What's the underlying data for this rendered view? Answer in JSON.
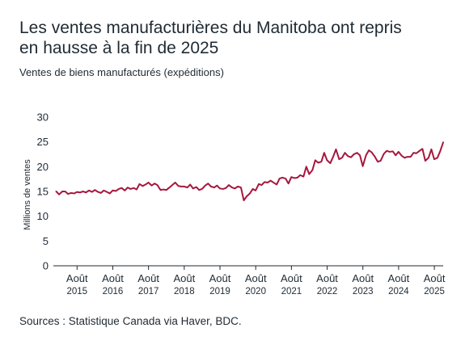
{
  "chart_data": {
    "type": "line",
    "title_line1": "Les ventes manufacturières du Manitoba ont repris",
    "title_line2": "en hausse à la fin de 2025",
    "subtitle": "Ventes de biens manufacturés (expéditions)",
    "ylabel": "Millions de ventes",
    "xlabel": "",
    "ylim": [
      0,
      30
    ],
    "yticks": [
      0,
      5,
      10,
      15,
      20,
      25,
      30
    ],
    "grid": false,
    "line_color": "#a6173d",
    "x_ticks": [
      {
        "month": "Août",
        "year": "2015",
        "x": 2015.583
      },
      {
        "month": "Août",
        "year": "2016",
        "x": 2016.583
      },
      {
        "month": "Août",
        "year": "2017",
        "x": 2017.583
      },
      {
        "month": "Août",
        "year": "2018",
        "x": 2018.583
      },
      {
        "month": "Août",
        "year": "2019",
        "x": 2019.583
      },
      {
        "month": "Août",
        "year": "2020",
        "x": 2020.583
      },
      {
        "month": "Août",
        "year": "2021",
        "x": 2021.583
      },
      {
        "month": "Août",
        "year": "2022",
        "x": 2022.583
      },
      {
        "month": "Août",
        "year": "2023",
        "x": 2023.583
      },
      {
        "month": "Août",
        "year": "2024",
        "x": 2024.583
      },
      {
        "month": "Août",
        "year": "2025",
        "x": 2025.583
      }
    ],
    "xlim": [
      2014.92,
      2025.83
    ],
    "series": [
      {
        "points": [
          [
            2015.0,
            15.0
          ],
          [
            2015.08,
            14.4
          ],
          [
            2015.17,
            15.0
          ],
          [
            2015.25,
            15.0
          ],
          [
            2015.33,
            14.5
          ],
          [
            2015.42,
            14.7
          ],
          [
            2015.5,
            14.6
          ],
          [
            2015.58,
            14.9
          ],
          [
            2015.67,
            14.8
          ],
          [
            2015.75,
            15.0
          ],
          [
            2015.83,
            14.8
          ],
          [
            2015.92,
            15.2
          ],
          [
            2016.0,
            14.9
          ],
          [
            2016.08,
            15.3
          ],
          [
            2016.17,
            14.9
          ],
          [
            2016.25,
            14.7
          ],
          [
            2016.33,
            15.2
          ],
          [
            2016.42,
            14.9
          ],
          [
            2016.5,
            14.6
          ],
          [
            2016.58,
            15.2
          ],
          [
            2016.67,
            15.1
          ],
          [
            2016.75,
            15.5
          ],
          [
            2016.83,
            15.7
          ],
          [
            2016.92,
            15.2
          ],
          [
            2017.0,
            15.8
          ],
          [
            2017.08,
            15.5
          ],
          [
            2017.17,
            15.7
          ],
          [
            2017.25,
            15.4
          ],
          [
            2017.33,
            16.5
          ],
          [
            2017.42,
            16.1
          ],
          [
            2017.5,
            16.4
          ],
          [
            2017.58,
            16.8
          ],
          [
            2017.67,
            16.2
          ],
          [
            2017.75,
            16.6
          ],
          [
            2017.83,
            16.3
          ],
          [
            2017.92,
            15.3
          ],
          [
            2018.0,
            15.4
          ],
          [
            2018.08,
            15.3
          ],
          [
            2018.17,
            15.8
          ],
          [
            2018.25,
            16.3
          ],
          [
            2018.33,
            16.8
          ],
          [
            2018.42,
            16.1
          ],
          [
            2018.5,
            16.0
          ],
          [
            2018.58,
            16.0
          ],
          [
            2018.67,
            15.8
          ],
          [
            2018.75,
            16.4
          ],
          [
            2018.83,
            15.6
          ],
          [
            2018.92,
            15.9
          ],
          [
            2019.0,
            15.3
          ],
          [
            2019.08,
            15.5
          ],
          [
            2019.17,
            16.2
          ],
          [
            2019.25,
            16.6
          ],
          [
            2019.33,
            16.0
          ],
          [
            2019.42,
            15.8
          ],
          [
            2019.5,
            16.2
          ],
          [
            2019.58,
            15.6
          ],
          [
            2019.67,
            15.5
          ],
          [
            2019.75,
            15.7
          ],
          [
            2019.83,
            16.3
          ],
          [
            2019.92,
            15.8
          ],
          [
            2020.0,
            15.6
          ],
          [
            2020.08,
            16.0
          ],
          [
            2020.17,
            15.8
          ],
          [
            2020.25,
            13.2
          ],
          [
            2020.33,
            14.0
          ],
          [
            2020.42,
            14.6
          ],
          [
            2020.5,
            15.5
          ],
          [
            2020.58,
            15.2
          ],
          [
            2020.67,
            16.5
          ],
          [
            2020.75,
            16.3
          ],
          [
            2020.83,
            16.9
          ],
          [
            2020.92,
            16.8
          ],
          [
            2021.0,
            17.2
          ],
          [
            2021.08,
            16.8
          ],
          [
            2021.17,
            16.4
          ],
          [
            2021.25,
            17.6
          ],
          [
            2021.33,
            17.8
          ],
          [
            2021.42,
            17.6
          ],
          [
            2021.5,
            16.6
          ],
          [
            2021.58,
            17.9
          ],
          [
            2021.67,
            17.7
          ],
          [
            2021.75,
            17.8
          ],
          [
            2021.83,
            18.3
          ],
          [
            2021.92,
            18.0
          ],
          [
            2022.0,
            20.0
          ],
          [
            2022.08,
            18.5
          ],
          [
            2022.17,
            19.3
          ],
          [
            2022.25,
            21.3
          ],
          [
            2022.33,
            20.8
          ],
          [
            2022.42,
            21.0
          ],
          [
            2022.5,
            22.8
          ],
          [
            2022.58,
            21.3
          ],
          [
            2022.67,
            20.7
          ],
          [
            2022.75,
            22.0
          ],
          [
            2022.83,
            23.5
          ],
          [
            2022.92,
            21.5
          ],
          [
            2023.0,
            21.8
          ],
          [
            2023.08,
            22.8
          ],
          [
            2023.17,
            22.1
          ],
          [
            2023.25,
            21.9
          ],
          [
            2023.33,
            22.5
          ],
          [
            2023.42,
            22.8
          ],
          [
            2023.5,
            22.3
          ],
          [
            2023.58,
            20.1
          ],
          [
            2023.67,
            22.3
          ],
          [
            2023.75,
            23.3
          ],
          [
            2023.83,
            22.9
          ],
          [
            2023.92,
            22.0
          ],
          [
            2024.0,
            21.0
          ],
          [
            2024.08,
            21.2
          ],
          [
            2024.17,
            22.6
          ],
          [
            2024.25,
            23.2
          ],
          [
            2024.33,
            23.0
          ],
          [
            2024.42,
            23.1
          ],
          [
            2024.5,
            22.3
          ],
          [
            2024.58,
            23.0
          ],
          [
            2024.67,
            22.2
          ],
          [
            2024.75,
            21.8
          ],
          [
            2024.83,
            22.0
          ],
          [
            2024.92,
            22.0
          ],
          [
            2025.0,
            22.8
          ],
          [
            2025.08,
            22.7
          ],
          [
            2025.17,
            23.2
          ],
          [
            2025.25,
            23.6
          ],
          [
            2025.33,
            21.2
          ],
          [
            2025.42,
            21.8
          ],
          [
            2025.5,
            23.5
          ],
          [
            2025.58,
            21.5
          ],
          [
            2025.67,
            21.8
          ],
          [
            2025.75,
            23.2
          ],
          [
            2025.83,
            24.9
          ]
        ]
      }
    ]
  },
  "source": "Sources : Statistique Canada via Haver, BDC."
}
